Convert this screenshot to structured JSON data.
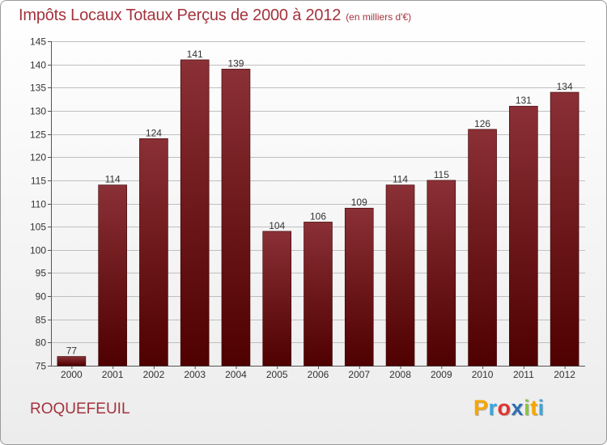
{
  "chart_data": {
    "type": "bar",
    "title": "Impôts Locaux Totaux Perçus de 2000 à 2012",
    "subtitle": "(en milliers d'€)",
    "categories": [
      "2000",
      "2001",
      "2002",
      "2003",
      "2004",
      "2005",
      "2006",
      "2007",
      "2008",
      "2009",
      "2010",
      "2011",
      "2012"
    ],
    "values": [
      77,
      114,
      124,
      141,
      139,
      104,
      106,
      109,
      114,
      115,
      126,
      131,
      134
    ],
    "ylim": [
      75,
      145
    ],
    "yticks": [
      75,
      80,
      85,
      90,
      95,
      100,
      105,
      110,
      115,
      120,
      125,
      130,
      135,
      140,
      145
    ],
    "grid": "horizontal",
    "xlabel": "",
    "ylabel": "",
    "bar_color_top": "#8a3036",
    "bar_color_bottom": "#4f0000",
    "grid_color": "#bfbfbf"
  },
  "commune": "ROQUEFEUIL",
  "logo": {
    "letters": [
      "P",
      "r",
      "o",
      "x",
      "i",
      "t",
      "i"
    ],
    "colors": [
      "#f7a600",
      "#3aa6dc",
      "#e3342f",
      "#2b6eb3",
      "#8bc53f",
      "#f7a600",
      "#3aa6dc"
    ]
  },
  "theme": {
    "accent": "#a3333d"
  }
}
